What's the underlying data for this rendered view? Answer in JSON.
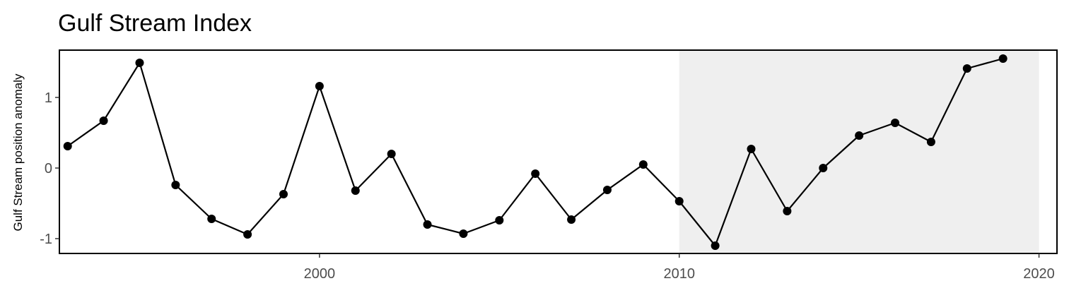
{
  "chart_data": {
    "type": "line",
    "title": "Gulf Stream Index",
    "xlabel": "",
    "ylabel": "Gulf Stream position anomaly",
    "x": [
      1993,
      1994,
      1995,
      1996,
      1997,
      1998,
      1999,
      2000,
      2001,
      2002,
      2003,
      2004,
      2005,
      2006,
      2007,
      2008,
      2009,
      2010,
      2011,
      2012,
      2013,
      2014,
      2015,
      2016,
      2017,
      2018,
      2019
    ],
    "series": [
      {
        "values": [
          0.31,
          0.67,
          1.49,
          -0.24,
          -0.72,
          -0.94,
          -0.37,
          1.16,
          -0.32,
          0.2,
          -0.8,
          -0.93,
          -0.74,
          -0.08,
          -0.73,
          -0.31,
          0.05,
          -0.47,
          -1.1,
          0.27,
          -0.61,
          0.0,
          0.46,
          0.64,
          0.37,
          1.41,
          1.55
        ]
      }
    ],
    "xlim": [
      1992.77,
      2020.5
    ],
    "ylim": [
      -1.21,
      1.67
    ],
    "xticks": [
      2000,
      2010,
      2020
    ],
    "yticks": [
      -1,
      0,
      1
    ],
    "shaded_region": {
      "x": [
        2010,
        2020
      ]
    },
    "grid": false,
    "legend": "none",
    "colors": {
      "line": "#000000",
      "points": "#000000",
      "shade": "#efefef",
      "panel_border": "#000000"
    }
  }
}
